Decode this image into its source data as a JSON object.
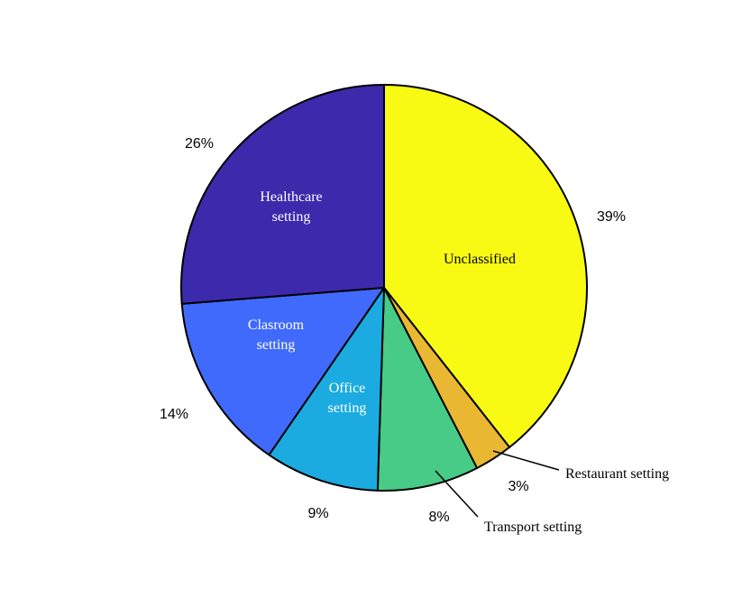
{
  "chart_data": {
    "type": "pie",
    "slices": [
      {
        "label": "Unclassified",
        "value": 39,
        "pct_label": "39%",
        "color": "#F8FA13",
        "label_color": "#000000",
        "callout": false
      },
      {
        "label": "Restaurant setting",
        "value": 3,
        "pct_label": "3%",
        "color": "#E9B731",
        "label_color": "#000000",
        "callout": true
      },
      {
        "label": "Transport setting",
        "value": 8,
        "pct_label": "8%",
        "color": "#47CB87",
        "label_color": "#000000",
        "callout": true
      },
      {
        "label": "Office setting",
        "value": 9,
        "pct_label": "9%",
        "color": "#1BABE0",
        "label_color": "#ffffff",
        "callout": false
      },
      {
        "label": "Clasroom setting",
        "value": 14,
        "pct_label": "14%",
        "color": "#406AFC",
        "label_color": "#ffffff",
        "callout": false
      },
      {
        "label": "Healthcare setting",
        "value": 26,
        "pct_label": "26%",
        "color": "#3D29AB",
        "label_color": "#ffffff",
        "callout": false
      }
    ]
  }
}
